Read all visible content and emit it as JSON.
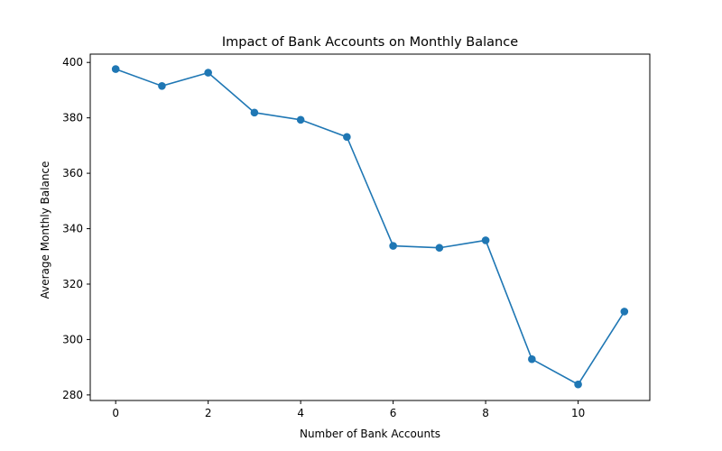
{
  "chart_data": {
    "type": "line",
    "title": "Impact of Bank Accounts on Monthly Balance",
    "xlabel": "Number of Bank Accounts",
    "ylabel": "Average Monthly Balance",
    "x": [
      0,
      1,
      2,
      3,
      4,
      5,
      6,
      7,
      8,
      9,
      10,
      11
    ],
    "series": [
      {
        "values": [
          397.6,
          391.5,
          396.3,
          381.9,
          379.3,
          373.1,
          333.8,
          333.1,
          335.8,
          292.9,
          283.8,
          310.1
        ],
        "color": "#1f77b4",
        "marker": "circle"
      }
    ],
    "xlim": [
      -0.55,
      11.55
    ],
    "ylim": [
      278,
      403
    ],
    "xticks": [
      0,
      2,
      4,
      6,
      8,
      10
    ],
    "yticks": [
      280,
      300,
      320,
      340,
      360,
      380,
      400
    ],
    "grid": false,
    "legend": "none"
  }
}
